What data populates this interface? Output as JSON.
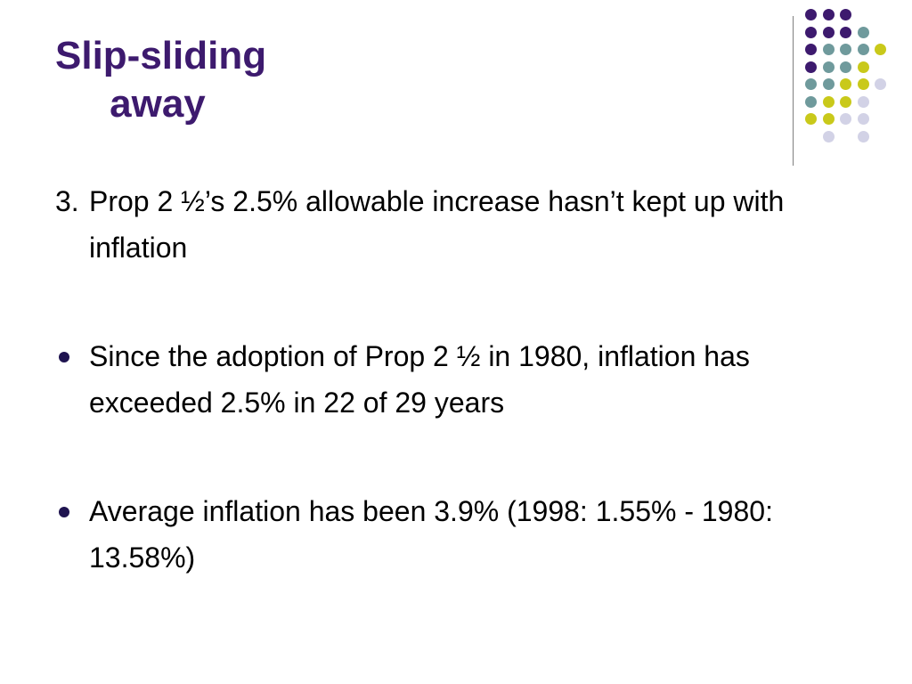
{
  "slide": {
    "title_lines": [
      "Slip-sliding",
      "     away"
    ],
    "numbered_item": {
      "number": "3.",
      "text": "Prop 2 ½’s 2.5% allowable increase hasn’t kept up with inflation"
    },
    "bullets": [
      {
        "text": "Since the adoption of Prop 2 ½ in 1980, inflation has exceeded 2.5% in 22 of 29 years"
      },
      {
        "text": "Average inflation has been 3.9% (1998: 1.55% - 1980: 13.58%)"
      }
    ]
  },
  "colors": {
    "title": "#3d1a6e",
    "bullet": "#1f1450",
    "dot_purple": "#3d1a6e",
    "dot_teal": "#6f9a9c",
    "dot_yellow": "#c9c91a",
    "dot_lavender": "#d2d2e6",
    "divider": "#7f7f7f"
  },
  "decoration": {
    "dot_grid": [
      [
        "purple",
        "purple",
        "purple",
        null,
        null
      ],
      [
        "purple",
        "purple",
        "purple",
        "teal",
        null
      ],
      [
        "purple",
        "teal",
        "teal",
        "teal",
        "yellow"
      ],
      [
        "purple",
        "teal",
        "teal",
        "yellow",
        null
      ],
      [
        "teal",
        "teal",
        "yellow",
        "yellow",
        "lavender"
      ],
      [
        "teal",
        "yellow",
        "yellow",
        "lavender",
        null
      ],
      [
        "yellow",
        "yellow",
        "lavender",
        "lavender",
        null
      ],
      [
        null,
        "lavender",
        null,
        "lavender",
        null
      ]
    ]
  }
}
